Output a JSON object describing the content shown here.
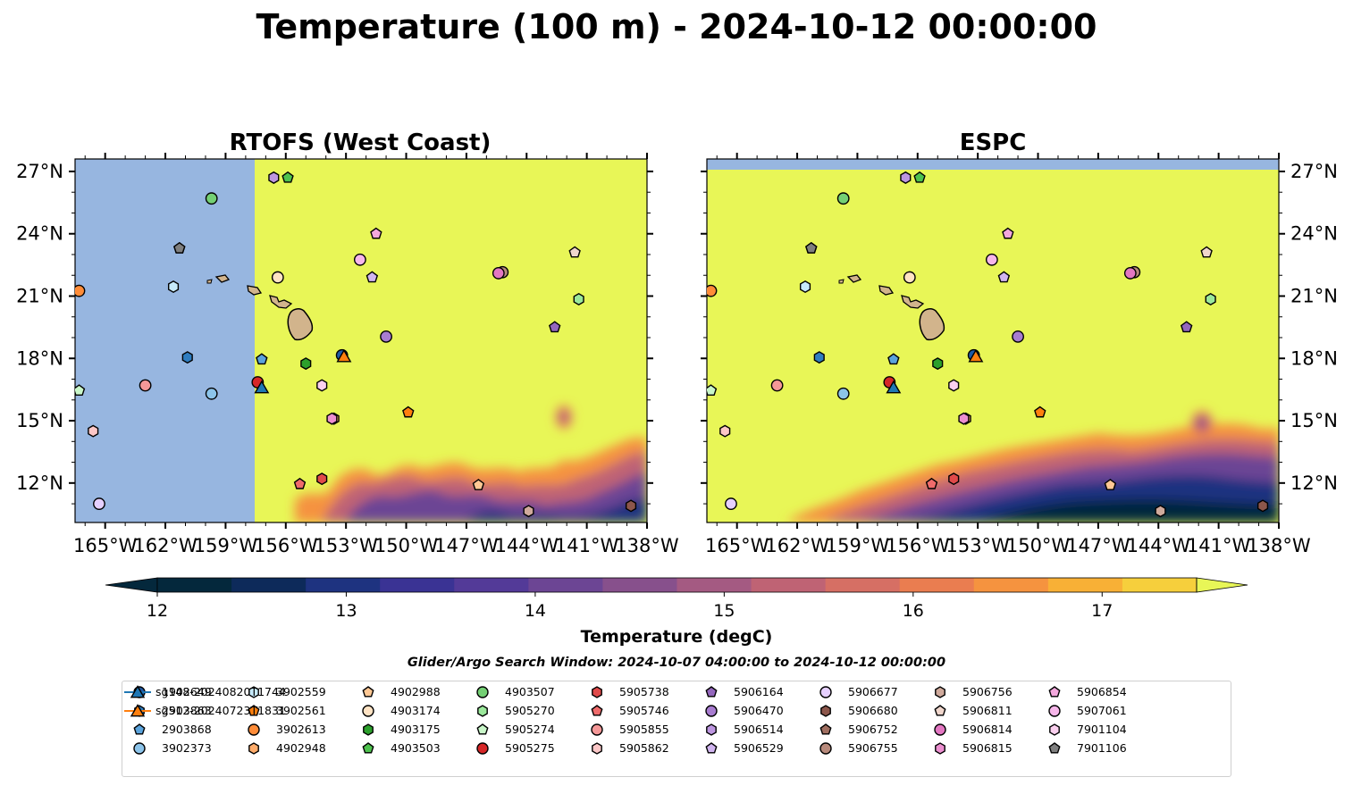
{
  "figure": {
    "title": "Temperature (100 m) - 2024-10-12 00:00:00",
    "search_window": "Glider/Argo Search Window: 2024-10-07 04:00:00 to 2024-10-12 00:00:00"
  },
  "chart_data": [
    {
      "type": "heatmap",
      "panel": "left",
      "title": "RTOFS (West Coast)",
      "x_ticks": [
        "165°W",
        "162°W",
        "159°W",
        "156°W",
        "153°W",
        "150°W",
        "147°W",
        "144°W",
        "141°W",
        "138°W"
      ],
      "x_tick_values": [
        -165,
        -162,
        -159,
        -156,
        -153,
        -150,
        -147,
        -144,
        -141,
        -138
      ],
      "y_ticks": [
        "12°N",
        "15°N",
        "18°N",
        "21°N",
        "24°N",
        "27°N"
      ],
      "y_tick_values": [
        12,
        15,
        18,
        21,
        24,
        27
      ],
      "xlim": [
        -166.5,
        -138
      ],
      "ylim": [
        10.1,
        27.6
      ],
      "no_data_west_of": -157.6,
      "cold_water_region": "southern edge, south of ~14°N, east of ~155°W; isolated patch near 142°W, 15.5°N"
    },
    {
      "type": "heatmap",
      "panel": "right",
      "title": "ESPC",
      "x_ticks": [
        "165°W",
        "162°W",
        "159°W",
        "156°W",
        "153°W",
        "150°W",
        "147°W",
        "144°W",
        "141°W",
        "138°W"
      ],
      "x_tick_values": [
        -165,
        -162,
        -159,
        -156,
        -153,
        -150,
        -147,
        -144,
        -141,
        -138
      ],
      "y_ticks": [
        "27°N",
        "24°N",
        "21°N",
        "18°N",
        "15°N",
        "12°N"
      ],
      "y_tick_values": [
        27,
        24,
        21,
        18,
        15,
        12
      ],
      "xlim": [
        -166.5,
        -138
      ],
      "ylim": [
        10.1,
        27.6
      ],
      "no_data_north_of": 27.1,
      "cold_water_region": "southern band south of ~13.5°N, east of ~162°W; patch near 142°W, 15°N"
    }
  ],
  "colorbar": {
    "label": "Temperature (degC)",
    "ticks": [
      "12",
      "13",
      "14",
      "15",
      "16",
      "17"
    ],
    "tick_values": [
      12,
      13,
      14,
      15,
      16,
      17
    ],
    "range": [
      12,
      17.5
    ],
    "step": 0.5,
    "colors": [
      "#04283c",
      "#0d2a5a",
      "#1e3380",
      "#3a3394",
      "#533a98",
      "#6c4594",
      "#87508c",
      "#a45a82",
      "#bf6374",
      "#d66f64",
      "#ea7d50",
      "#f5933f",
      "#f8b036",
      "#f6cf3c",
      "#e8f657"
    ],
    "extend": "both"
  },
  "land_color": "#d2b48c",
  "nodata_color": "#97b6e0",
  "markers": [
    {
      "id": "1902649",
      "shape": "circle",
      "color": "#1f5aa6",
      "lon": -153.2,
      "lat": 18.15
    },
    {
      "id": "2903863",
      "shape": "hexagon",
      "color": "#2f7dc0",
      "lon": -160.9,
      "lat": 18.05
    },
    {
      "id": "2903868",
      "shape": "pentagon",
      "color": "#5aa3dc",
      "lon": -157.2,
      "lat": 17.95
    },
    {
      "id": "3902373",
      "shape": "circle",
      "color": "#8cc4ea",
      "lon": -159.7,
      "lat": 16.3
    },
    {
      "id": "3902559",
      "shape": "hexagon",
      "color": "#c7eafb",
      "lon": -161.6,
      "lat": 21.45
    },
    {
      "id": "3902561",
      "shape": "pentagon",
      "color": "#ff7f0e",
      "lon": -149.9,
      "lat": 15.4
    },
    {
      "id": "3902613",
      "shape": "circle",
      "color": "#ff8c38",
      "lon": -166.3,
      "lat": 21.25
    },
    {
      "id": "4902948",
      "shape": "hexagon",
      "color": "#ffac6b",
      "lon": -153.6,
      "lat": 15.1
    },
    {
      "id": "4902988",
      "shape": "pentagon",
      "color": "#ffc894",
      "lon": -146.4,
      "lat": 11.9
    },
    {
      "id": "4903174",
      "shape": "circle",
      "color": "#ffe3c4",
      "lon": -156.4,
      "lat": 21.9
    },
    {
      "id": "4903175",
      "shape": "hexagon",
      "color": "#2ca02c",
      "lon": -155.0,
      "lat": 17.75
    },
    {
      "id": "4903503",
      "shape": "pentagon",
      "color": "#4ec24e",
      "lon": -155.9,
      "lat": 26.7
    },
    {
      "id": "4903507",
      "shape": "circle",
      "color": "#74d074",
      "lon": -159.7,
      "lat": 25.7
    },
    {
      "id": "5905270",
      "shape": "hexagon",
      "color": "#9be89b",
      "lon": -141.4,
      "lat": 20.85
    },
    {
      "id": "5905274",
      "shape": "pentagon",
      "color": "#c9f7c9",
      "lon": -166.3,
      "lat": 16.45
    },
    {
      "id": "5905275",
      "shape": "circle",
      "color": "#d62728",
      "lon": -157.4,
      "lat": 16.85
    },
    {
      "id": "5905738",
      "shape": "hexagon",
      "color": "#e04a4a",
      "lon": -154.2,
      "lat": 12.2
    },
    {
      "id": "5905746",
      "shape": "pentagon",
      "color": "#ef6b6b",
      "lon": -155.3,
      "lat": 11.95
    },
    {
      "id": "5905855",
      "shape": "circle",
      "color": "#f59898",
      "lon": -163.0,
      "lat": 16.7
    },
    {
      "id": "5905862",
      "shape": "hexagon",
      "color": "#fcc7c7",
      "lon": -165.6,
      "lat": 14.5
    },
    {
      "id": "5906164",
      "shape": "pentagon",
      "color": "#9467bd",
      "lon": -142.6,
      "lat": 19.5
    },
    {
      "id": "5906470",
      "shape": "circle",
      "color": "#a87cd0",
      "lon": -151.0,
      "lat": 19.05
    },
    {
      "id": "5906514",
      "shape": "hexagon",
      "color": "#bd96e0",
      "lon": -156.6,
      "lat": 26.7
    },
    {
      "id": "5906529",
      "shape": "pentagon",
      "color": "#d1b5f0",
      "lon": -151.7,
      "lat": 21.9
    },
    {
      "id": "5906677",
      "shape": "circle",
      "color": "#e6d0ff",
      "lon": -165.3,
      "lat": 11.0
    },
    {
      "id": "5906680",
      "shape": "hexagon",
      "color": "#8c564b",
      "lon": -138.8,
      "lat": 10.9
    },
    {
      "id": "5906752",
      "shape": "pentagon",
      "color": "#a06e60",
      "lon": -161.3,
      "lat": 23.3
    },
    {
      "id": "5906755",
      "shape": "circle",
      "color": "#b88a7c",
      "lon": -145.2,
      "lat": 22.15
    },
    {
      "id": "5906756",
      "shape": "hexagon",
      "color": "#d0aa9c",
      "lon": -143.9,
      "lat": 10.65
    },
    {
      "id": "5906811",
      "shape": "pentagon",
      "color": "#f0d6cc",
      "lon": -141.6,
      "lat": 23.1
    },
    {
      "id": "5906814",
      "shape": "circle",
      "color": "#e377c2",
      "lon": -145.4,
      "lat": 22.1
    },
    {
      "id": "5906815",
      "shape": "hexagon",
      "color": "#ec8fd0",
      "lon": -153.7,
      "lat": 15.1
    },
    {
      "id": "5906854",
      "shape": "pentagon",
      "color": "#f3a8dd",
      "lon": -151.5,
      "lat": 24.0
    },
    {
      "id": "5907061",
      "shape": "circle",
      "color": "#f7b6ea",
      "lon": -152.3,
      "lat": 22.75
    },
    {
      "id": "7901104",
      "shape": "hexagon",
      "color": "#fbd0ef",
      "lon": -154.2,
      "lat": 16.7
    },
    {
      "id": "7901106",
      "shape": "pentagon",
      "color": "#7f7f7f",
      "lon": -161.3,
      "lat": 23.3
    },
    {
      "id": "sg148-20240820T1744",
      "shape": "triangle",
      "color": "#1f77b4",
      "lon": -157.2,
      "lat": 16.6,
      "line": true
    },
    {
      "id": "sg512-20240723T1831",
      "shape": "triangle",
      "color": "#ff7f0e",
      "lon": -153.1,
      "lat": 18.1,
      "line": true
    }
  ]
}
